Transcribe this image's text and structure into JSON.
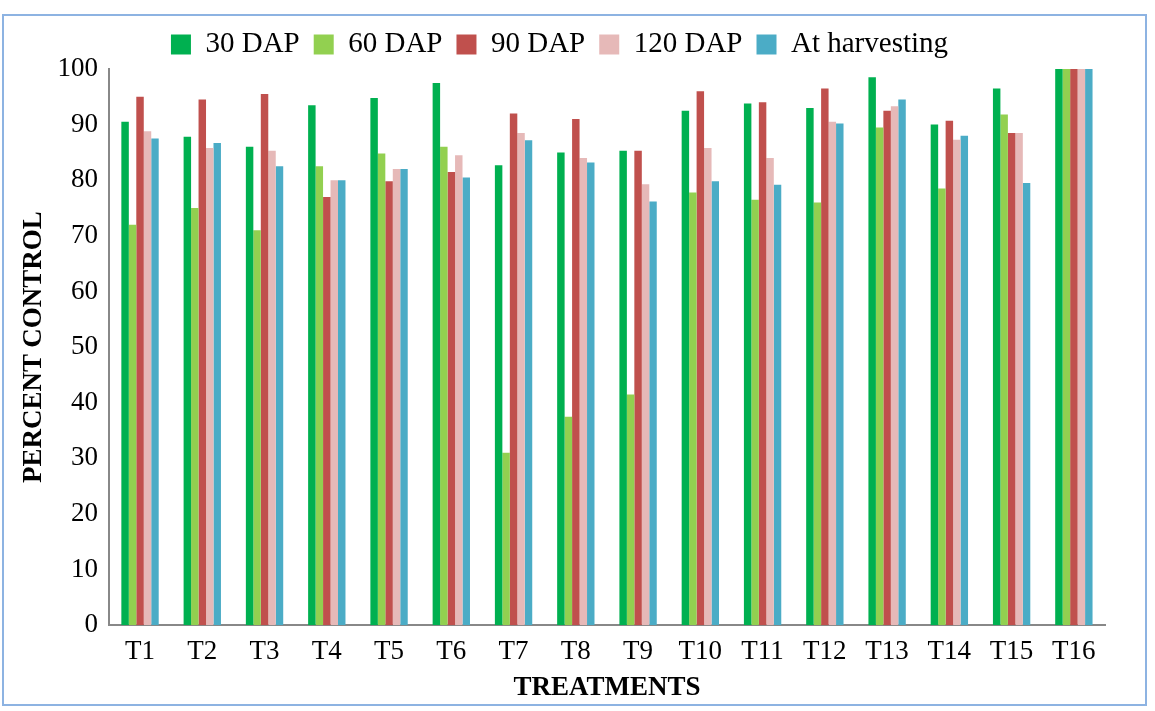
{
  "chart_data": {
    "type": "bar",
    "xlabel": "TREATMENTS",
    "ylabel": "PERCENT CONTROL",
    "categories": [
      "T1",
      "T2",
      "T3",
      "T4",
      "T5",
      "T6",
      "T7",
      "T8",
      "T9",
      "T10",
      "T11",
      "T12",
      "T13",
      "T14",
      "T15",
      "T16"
    ],
    "series": [
      {
        "name": "30 DAP",
        "color": "#00b050",
        "values": [
          90.5,
          87.8,
          86,
          93.5,
          94.8,
          97.5,
          82.7,
          85,
          85.3,
          92.5,
          93.8,
          93,
          98.5,
          90,
          96.5,
          100
        ]
      },
      {
        "name": "60 DAP",
        "color": "#92d050",
        "values": [
          72,
          75,
          71,
          82.5,
          84.8,
          86,
          31,
          37.5,
          41.5,
          77.8,
          76.5,
          76,
          89.5,
          78.5,
          91.8,
          100
        ]
      },
      {
        "name": "90 DAP",
        "color": "#c0504d",
        "values": [
          95,
          94.5,
          95.5,
          77,
          79.8,
          81.5,
          92,
          91,
          85.3,
          96,
          94,
          96.5,
          92.5,
          90.7,
          88.5,
          100
        ]
      },
      {
        "name": "120 DAP",
        "color": "#e6b9b8",
        "values": [
          88.8,
          85.8,
          85.3,
          80,
          82,
          84.5,
          88.5,
          84,
          79.3,
          85.8,
          84,
          90.5,
          93.3,
          87.3,
          88.5,
          100
        ]
      },
      {
        "name": "At harvesting",
        "color": "#4bacc6",
        "values": [
          87.5,
          86.7,
          82.5,
          80,
          82,
          80.5,
          87.2,
          83.2,
          76.2,
          79.8,
          79.2,
          90.2,
          94.5,
          88,
          79.5,
          100
        ]
      }
    ],
    "ylim": [
      0,
      100
    ],
    "yticks": [
      0,
      10,
      20,
      30,
      40,
      50,
      60,
      70,
      80,
      90,
      100
    ],
    "grid": false,
    "legend": "top"
  }
}
